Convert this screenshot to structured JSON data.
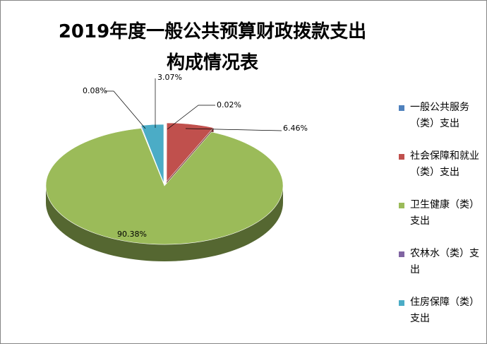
{
  "chart_data": {
    "type": "pie",
    "style": "3d-exploded",
    "title": "2019年度一般公共预算财政拨款支出构成情况表",
    "title_lines": [
      "2019年度一般公共预算财政拨款支出",
      "构成情况表"
    ],
    "legend_position": "right",
    "slices": [
      {
        "name": "一般公共服务（类）支出",
        "value": 0.02,
        "label": "0.02%",
        "color": "#4F81BD"
      },
      {
        "name": "社会保障和就业（类）支出",
        "value": 6.46,
        "label": "6.46%",
        "color": "#C0504D"
      },
      {
        "name": "卫生健康（类）支出",
        "value": 90.38,
        "label": "90.38%",
        "color": "#9BBB59"
      },
      {
        "name": "农林水（类）支出",
        "value": 0.08,
        "label": "0.08%",
        "color": "#8064A2"
      },
      {
        "name": "住房保障（类）支出",
        "value": 3.07,
        "label": "3.07%",
        "color": "#4BACC6"
      }
    ]
  }
}
